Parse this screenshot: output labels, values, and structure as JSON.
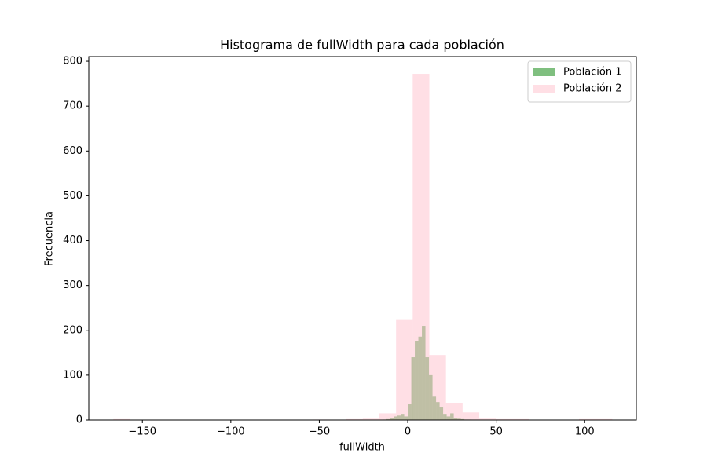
{
  "chart_data": {
    "type": "histogram",
    "title": "Histograma de fullWidth para cada población",
    "x_label": "fullWidth",
    "y_label": "Frecuencia",
    "xlim": [
      -180.3,
      129.2
    ],
    "ylim": [
      0,
      810.6
    ],
    "xticks": [
      {
        "value": -150,
        "label": "−150"
      },
      {
        "value": -100,
        "label": "−100"
      },
      {
        "value": -50,
        "label": "−50"
      },
      0,
      50,
      100
    ],
    "yticks": [
      0,
      100,
      200,
      300,
      400,
      500,
      600,
      700,
      800
    ],
    "grid": false,
    "legend": "upper right",
    "series": [
      {
        "name": "Población 1",
        "color": "#008000",
        "opacity": 0.5,
        "bins": [
          -14,
          -12,
          -10,
          -8,
          -6,
          -4,
          -2,
          0,
          2,
          4,
          6,
          8,
          10,
          12,
          14,
          16,
          18,
          20,
          22,
          24,
          26,
          28,
          30,
          32,
          34,
          36
        ],
        "values": [
          1,
          2,
          5,
          8,
          10,
          12,
          8,
          35,
          140,
          176,
          186,
          210,
          140,
          100,
          52,
          40,
          28,
          12,
          8,
          15,
          5,
          3,
          2,
          1,
          1
        ]
      },
      {
        "name": "Población 2",
        "color": "#ffc0cb",
        "opacity": 0.5,
        "bins": [
          -166.4,
          -157,
          -147.6,
          -138.2,
          -128.8,
          -119.4,
          -110,
          -100.6,
          -91.2,
          -81.8,
          -72.4,
          -63,
          -53.6,
          -44.2,
          -34.8,
          -25.4,
          -16,
          -6.6,
          2.8,
          12.2,
          21.6,
          31,
          40.4,
          49.8,
          59.2,
          68.6,
          78,
          87.4,
          96.8,
          106.2,
          115.6
        ],
        "values": [
          2,
          0,
          0,
          0,
          0,
          0,
          0,
          0,
          0,
          0,
          0,
          0,
          1,
          0,
          2,
          3,
          15,
          223,
          772,
          145,
          38,
          17,
          3,
          2,
          2,
          0,
          0,
          0,
          2,
          2
        ]
      }
    ]
  }
}
